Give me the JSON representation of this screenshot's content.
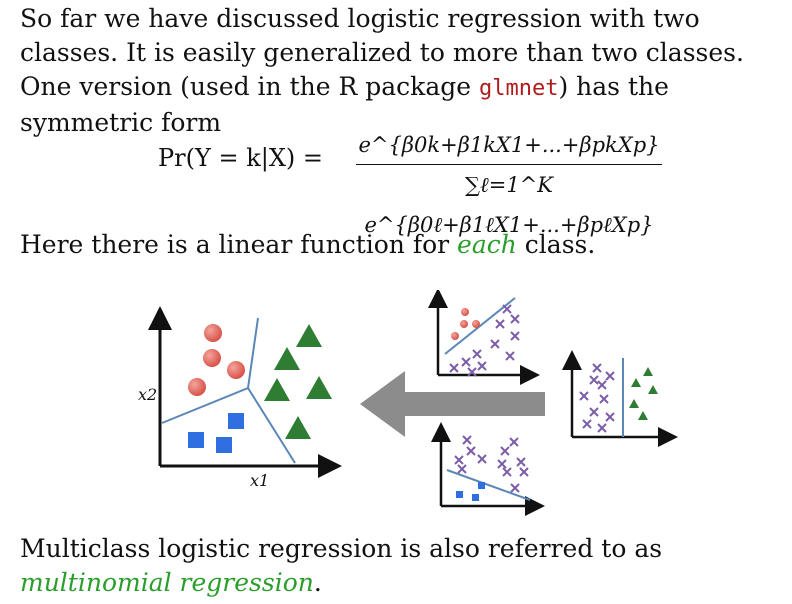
{
  "intro": {
    "part1": "So far we have discussed logistic regression with two classes. It is easily generalized to more than two classes. One version (used in the R package ",
    "package": "glmnet",
    "part2": ") has the symmetric form"
  },
  "formula": {
    "lhs": "Pr(Y = k|X) =",
    "numerator": "e^{β0k+β1kX1+...+βpkXp}",
    "denominator": "∑ℓ=1^K e^{β0ℓ+β1ℓX1+...+βpℓXp}"
  },
  "linear": {
    "before": "Here there is a linear function for ",
    "emph": "each",
    "after": " class."
  },
  "diagram": {
    "x1_label": "x1",
    "x2_label": "x2"
  },
  "closing": {
    "before": "Multiclass logistic regression is also referred to as ",
    "emph": "multinomial regression",
    "after": "."
  },
  "colors": {
    "red": "#e0665c",
    "green": "#2e7d32",
    "blue": "#2f6fe0",
    "purple": "#7b5ea7",
    "arrow": "#8c8c8c",
    "boundary": "#5b87b8",
    "accent_green": "#2a9d2a",
    "code_red": "#b01c1c"
  }
}
